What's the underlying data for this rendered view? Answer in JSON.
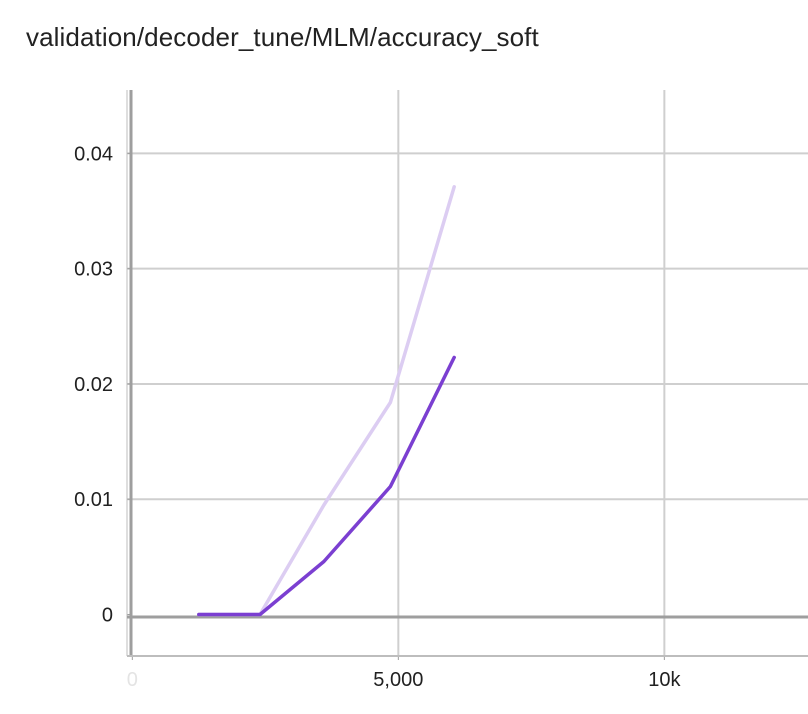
{
  "chart_data": {
    "type": "line",
    "title": "validation/decoder_tune/MLM/accuracy_soft",
    "xlabel": "",
    "ylabel": "",
    "xlim": [
      -100,
      12700
    ],
    "ylim": [
      -0.0036,
      0.0455
    ],
    "x_ticks": [
      {
        "value": 0,
        "label": "0"
      },
      {
        "value": 5000,
        "label": "5,000"
      },
      {
        "value": 10000,
        "label": "10k"
      }
    ],
    "y_ticks": [
      {
        "value": 0,
        "label": "0"
      },
      {
        "value": 0.01,
        "label": "0.01"
      },
      {
        "value": 0.02,
        "label": "0.02"
      },
      {
        "value": 0.03,
        "label": "0.03"
      },
      {
        "value": 0.04,
        "label": "0.04"
      }
    ],
    "grid": true,
    "legend": "none",
    "series": [
      {
        "role": "raw",
        "color": "#dccdf2",
        "x": [
          1250,
          2400,
          3600,
          4850,
          6050
        ],
        "y": [
          0,
          0,
          0.0095,
          0.0184,
          0.0371
        ]
      },
      {
        "role": "smoothed",
        "color": "#7b3fd1",
        "x": [
          1250,
          2400,
          3600,
          4850,
          6050
        ],
        "y": [
          0,
          0,
          0.0046,
          0.0111,
          0.0223
        ]
      }
    ]
  }
}
